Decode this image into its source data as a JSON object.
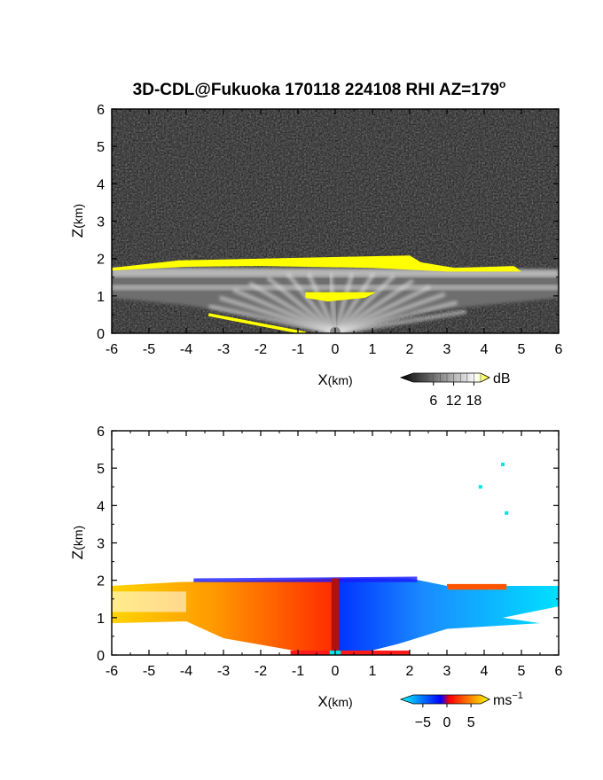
{
  "title": {
    "main": "3D-CDL@Fukuoka 170118 224108 RHI AZ=179",
    "degree": "o"
  },
  "chart_data": [
    {
      "type": "heatmap",
      "variable": "backscatter intensity",
      "xlabel": {
        "main": "X",
        "unit": "(km)"
      },
      "ylabel": {
        "main": "Z",
        "unit": "(km)"
      },
      "xlim": [
        -6,
        6
      ],
      "ylim": [
        0,
        6
      ],
      "xticks": [
        "-6",
        "-5",
        "-4",
        "-3",
        "-2",
        "-1",
        "0",
        "1",
        "2",
        "3",
        "4",
        "5",
        "6"
      ],
      "yticks": [
        "0",
        "1",
        "2",
        "3",
        "4",
        "5",
        "6"
      ],
      "colorbar": {
        "unit": "dB",
        "ticks": [
          "6",
          "12",
          "18"
        ],
        "range": [
          0,
          20
        ],
        "colors": [
          "#000000",
          "#ffffff",
          "#ffff00"
        ]
      },
      "features": {
        "background": "noisy dark gray",
        "cloud_layer_dB_high": {
          "x": [
            -6,
            4.8
          ],
          "z": [
            1.8,
            2.05
          ],
          "color": "#ffff00"
        },
        "inner_echo": {
          "x": [
            -0.8,
            1.1
          ],
          "z": [
            0.85,
            1.1
          ],
          "color": "#ffff00"
        },
        "low_aerosol_layer": {
          "z": [
            0,
            1.8
          ],
          "color": "gray-white fan"
        },
        "ground_return_line": {
          "x": [
            -3.4,
            -0.8
          ],
          "z": [
            0.5,
            0.0
          ],
          "color": "#ffff00"
        }
      }
    },
    {
      "type": "heatmap",
      "variable": "Doppler radial velocity",
      "xlabel": {
        "main": "X",
        "unit": "(km)"
      },
      "ylabel": {
        "main": "Z",
        "unit": "(km)"
      },
      "xlim": [
        -6,
        6
      ],
      "ylim": [
        0,
        6
      ],
      "xticks": [
        "-6",
        "-5",
        "-4",
        "-3",
        "-2",
        "-1",
        "0",
        "1",
        "2",
        "3",
        "4",
        "5",
        "6"
      ],
      "yticks": [
        "0",
        "1",
        "2",
        "3",
        "4",
        "5",
        "6"
      ],
      "colorbar": {
        "unit": "ms",
        "unit_exp": "−1",
        "ticks": [
          "−5",
          "0",
          "5"
        ],
        "range": [
          -7,
          7
        ],
        "colors": [
          "#00ffff",
          "#0000ff",
          "#ff0000",
          "#ffff00"
        ]
      },
      "features": {
        "left_side_velocity_ms": 4,
        "right_side_velocity_ms": -4,
        "echo_top_km": 2.05,
        "scattered_points": [
          [
            4.5,
            5.1
          ],
          [
            3.9,
            4.5
          ],
          [
            4.6,
            3.8
          ]
        ]
      }
    }
  ]
}
